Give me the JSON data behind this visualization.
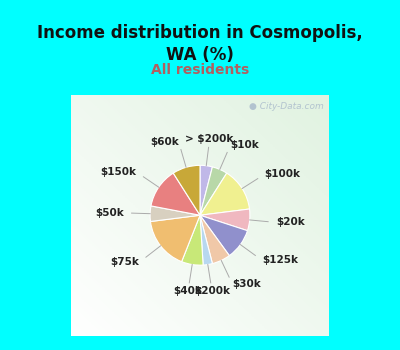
{
  "title": "Income distribution in Cosmopolis,\nWA (%)",
  "subtitle": "All residents",
  "title_color": "#111111",
  "subtitle_color": "#b06060",
  "background_color": "#00ffff",
  "watermark": "● City-Data.com",
  "slices": [
    {
      "label": "> $200k",
      "value": 4,
      "color": "#c0b8e8"
    },
    {
      "label": "$10k",
      "value": 5,
      "color": "#b8d8a8"
    },
    {
      "label": "$100k",
      "value": 14,
      "color": "#f0f090"
    },
    {
      "label": "$20k",
      "value": 7,
      "color": "#f0b8c0"
    },
    {
      "label": "$125k",
      "value": 10,
      "color": "#9090cc"
    },
    {
      "label": "$30k",
      "value": 6,
      "color": "#f0c8a8"
    },
    {
      "label": "$200k",
      "value": 3,
      "color": "#b8d8f0"
    },
    {
      "label": "$40k",
      "value": 7,
      "color": "#c8e878"
    },
    {
      "label": "$75k",
      "value": 17,
      "color": "#f0be70"
    },
    {
      "label": "$50k",
      "value": 5,
      "color": "#d8d0c0"
    },
    {
      "label": "$150k",
      "value": 13,
      "color": "#e88080"
    },
    {
      "label": "$60k",
      "value": 9,
      "color": "#c8a838"
    }
  ],
  "label_fontsize": 7.5,
  "title_fontsize": 12,
  "subtitle_fontsize": 10,
  "fig_width": 4.0,
  "fig_height": 3.5,
  "dpi": 100
}
